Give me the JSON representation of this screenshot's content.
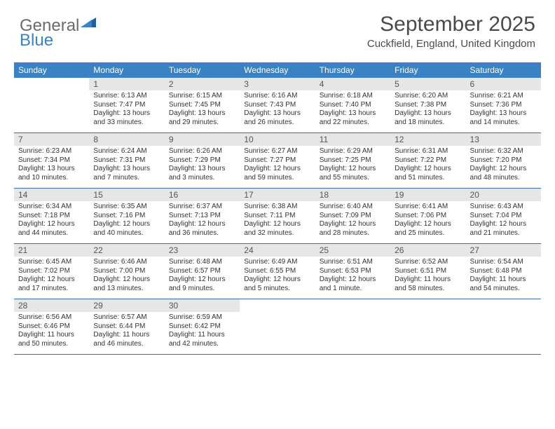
{
  "brand": {
    "part1": "General",
    "part2": "Blue"
  },
  "title": "September 2025",
  "location": "Cuckfield, England, United Kingdom",
  "colors": {
    "header_bg": "#3b82c4",
    "header_text": "#ffffff",
    "daynum_bg": "#e6e6e6",
    "row_border": "#3b6fa0",
    "text": "#333333",
    "logo_gray": "#6b6b6b",
    "logo_blue": "#3b82c4"
  },
  "day_names": [
    "Sunday",
    "Monday",
    "Tuesday",
    "Wednesday",
    "Thursday",
    "Friday",
    "Saturday"
  ],
  "weeks": [
    [
      {
        "empty": true
      },
      {
        "num": "1",
        "sunrise": "Sunrise: 6:13 AM",
        "sunset": "Sunset: 7:47 PM",
        "daylight": "Daylight: 13 hours and 33 minutes."
      },
      {
        "num": "2",
        "sunrise": "Sunrise: 6:15 AM",
        "sunset": "Sunset: 7:45 PM",
        "daylight": "Daylight: 13 hours and 29 minutes."
      },
      {
        "num": "3",
        "sunrise": "Sunrise: 6:16 AM",
        "sunset": "Sunset: 7:43 PM",
        "daylight": "Daylight: 13 hours and 26 minutes."
      },
      {
        "num": "4",
        "sunrise": "Sunrise: 6:18 AM",
        "sunset": "Sunset: 7:40 PM",
        "daylight": "Daylight: 13 hours and 22 minutes."
      },
      {
        "num": "5",
        "sunrise": "Sunrise: 6:20 AM",
        "sunset": "Sunset: 7:38 PM",
        "daylight": "Daylight: 13 hours and 18 minutes."
      },
      {
        "num": "6",
        "sunrise": "Sunrise: 6:21 AM",
        "sunset": "Sunset: 7:36 PM",
        "daylight": "Daylight: 13 hours and 14 minutes."
      }
    ],
    [
      {
        "num": "7",
        "sunrise": "Sunrise: 6:23 AM",
        "sunset": "Sunset: 7:34 PM",
        "daylight": "Daylight: 13 hours and 10 minutes."
      },
      {
        "num": "8",
        "sunrise": "Sunrise: 6:24 AM",
        "sunset": "Sunset: 7:31 PM",
        "daylight": "Daylight: 13 hours and 7 minutes."
      },
      {
        "num": "9",
        "sunrise": "Sunrise: 6:26 AM",
        "sunset": "Sunset: 7:29 PM",
        "daylight": "Daylight: 13 hours and 3 minutes."
      },
      {
        "num": "10",
        "sunrise": "Sunrise: 6:27 AM",
        "sunset": "Sunset: 7:27 PM",
        "daylight": "Daylight: 12 hours and 59 minutes."
      },
      {
        "num": "11",
        "sunrise": "Sunrise: 6:29 AM",
        "sunset": "Sunset: 7:25 PM",
        "daylight": "Daylight: 12 hours and 55 minutes."
      },
      {
        "num": "12",
        "sunrise": "Sunrise: 6:31 AM",
        "sunset": "Sunset: 7:22 PM",
        "daylight": "Daylight: 12 hours and 51 minutes."
      },
      {
        "num": "13",
        "sunrise": "Sunrise: 6:32 AM",
        "sunset": "Sunset: 7:20 PM",
        "daylight": "Daylight: 12 hours and 48 minutes."
      }
    ],
    [
      {
        "num": "14",
        "sunrise": "Sunrise: 6:34 AM",
        "sunset": "Sunset: 7:18 PM",
        "daylight": "Daylight: 12 hours and 44 minutes."
      },
      {
        "num": "15",
        "sunrise": "Sunrise: 6:35 AM",
        "sunset": "Sunset: 7:16 PM",
        "daylight": "Daylight: 12 hours and 40 minutes."
      },
      {
        "num": "16",
        "sunrise": "Sunrise: 6:37 AM",
        "sunset": "Sunset: 7:13 PM",
        "daylight": "Daylight: 12 hours and 36 minutes."
      },
      {
        "num": "17",
        "sunrise": "Sunrise: 6:38 AM",
        "sunset": "Sunset: 7:11 PM",
        "daylight": "Daylight: 12 hours and 32 minutes."
      },
      {
        "num": "18",
        "sunrise": "Sunrise: 6:40 AM",
        "sunset": "Sunset: 7:09 PM",
        "daylight": "Daylight: 12 hours and 28 minutes."
      },
      {
        "num": "19",
        "sunrise": "Sunrise: 6:41 AM",
        "sunset": "Sunset: 7:06 PM",
        "daylight": "Daylight: 12 hours and 25 minutes."
      },
      {
        "num": "20",
        "sunrise": "Sunrise: 6:43 AM",
        "sunset": "Sunset: 7:04 PM",
        "daylight": "Daylight: 12 hours and 21 minutes."
      }
    ],
    [
      {
        "num": "21",
        "sunrise": "Sunrise: 6:45 AM",
        "sunset": "Sunset: 7:02 PM",
        "daylight": "Daylight: 12 hours and 17 minutes."
      },
      {
        "num": "22",
        "sunrise": "Sunrise: 6:46 AM",
        "sunset": "Sunset: 7:00 PM",
        "daylight": "Daylight: 12 hours and 13 minutes."
      },
      {
        "num": "23",
        "sunrise": "Sunrise: 6:48 AM",
        "sunset": "Sunset: 6:57 PM",
        "daylight": "Daylight: 12 hours and 9 minutes."
      },
      {
        "num": "24",
        "sunrise": "Sunrise: 6:49 AM",
        "sunset": "Sunset: 6:55 PM",
        "daylight": "Daylight: 12 hours and 5 minutes."
      },
      {
        "num": "25",
        "sunrise": "Sunrise: 6:51 AM",
        "sunset": "Sunset: 6:53 PM",
        "daylight": "Daylight: 12 hours and 1 minute."
      },
      {
        "num": "26",
        "sunrise": "Sunrise: 6:52 AM",
        "sunset": "Sunset: 6:51 PM",
        "daylight": "Daylight: 11 hours and 58 minutes."
      },
      {
        "num": "27",
        "sunrise": "Sunrise: 6:54 AM",
        "sunset": "Sunset: 6:48 PM",
        "daylight": "Daylight: 11 hours and 54 minutes."
      }
    ],
    [
      {
        "num": "28",
        "sunrise": "Sunrise: 6:56 AM",
        "sunset": "Sunset: 6:46 PM",
        "daylight": "Daylight: 11 hours and 50 minutes."
      },
      {
        "num": "29",
        "sunrise": "Sunrise: 6:57 AM",
        "sunset": "Sunset: 6:44 PM",
        "daylight": "Daylight: 11 hours and 46 minutes."
      },
      {
        "num": "30",
        "sunrise": "Sunrise: 6:59 AM",
        "sunset": "Sunset: 6:42 PM",
        "daylight": "Daylight: 11 hours and 42 minutes."
      },
      {
        "empty": true
      },
      {
        "empty": true
      },
      {
        "empty": true
      },
      {
        "empty": true
      }
    ]
  ]
}
